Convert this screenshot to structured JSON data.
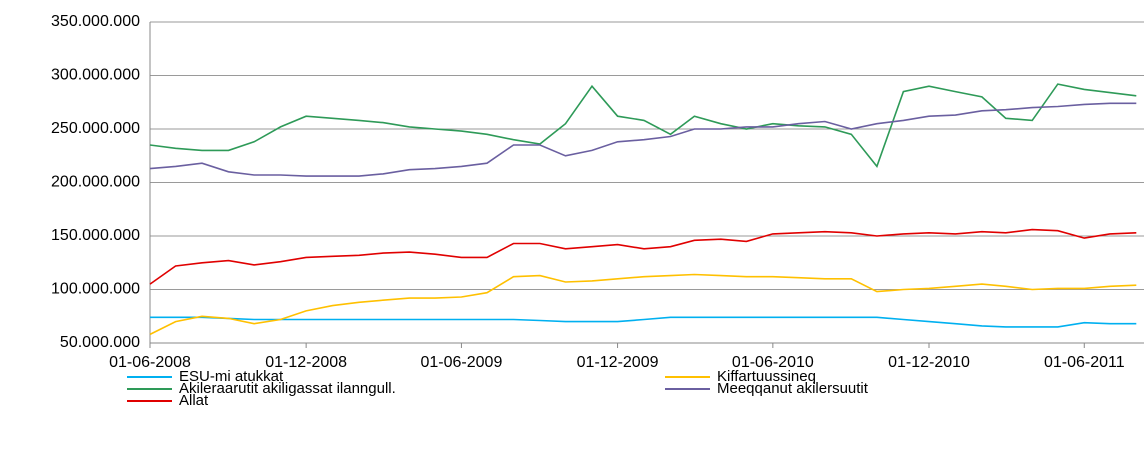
{
  "chart_data": {
    "type": "line",
    "x": [
      "01-06-2008",
      "01-07-2008",
      "01-08-2008",
      "01-09-2008",
      "01-10-2008",
      "01-11-2008",
      "01-12-2008",
      "01-01-2009",
      "01-02-2009",
      "01-03-2009",
      "01-04-2009",
      "01-05-2009",
      "01-06-2009",
      "01-07-2009",
      "01-08-2009",
      "01-09-2009",
      "01-10-2009",
      "01-11-2009",
      "01-12-2009",
      "01-01-2010",
      "01-02-2010",
      "01-03-2010",
      "01-04-2010",
      "01-05-2010",
      "01-06-2010",
      "01-07-2010",
      "01-08-2010",
      "01-09-2010",
      "01-10-2010",
      "01-11-2010",
      "01-12-2010",
      "01-01-2011",
      "01-02-2011",
      "01-03-2011",
      "01-04-2011",
      "01-05-2011",
      "01-06-2011",
      "01-07-2011",
      "01-08-2011"
    ],
    "series": [
      {
        "name": "ESU-mi atukkat",
        "color": "#00b0f0",
        "values": [
          74000000,
          74000000,
          74000000,
          73000000,
          72000000,
          72000000,
          72000000,
          72000000,
          72000000,
          72000000,
          72000000,
          72000000,
          72000000,
          72000000,
          72000000,
          71000000,
          70000000,
          70000000,
          70000000,
          72000000,
          74000000,
          74000000,
          74000000,
          74000000,
          74000000,
          74000000,
          74000000,
          74000000,
          74000000,
          72000000,
          70000000,
          68000000,
          66000000,
          65000000,
          65000000,
          65000000,
          69000000,
          68000000,
          68000000
        ]
      },
      {
        "name": "Kiffartuussineq",
        "color": "#ffc000",
        "values": [
          58000000,
          70000000,
          75000000,
          73000000,
          68000000,
          72000000,
          80000000,
          85000000,
          88000000,
          90000000,
          92000000,
          92000000,
          93000000,
          97000000,
          112000000,
          113000000,
          107000000,
          108000000,
          110000000,
          112000000,
          113000000,
          114000000,
          113000000,
          112000000,
          112000000,
          111000000,
          110000000,
          110000000,
          98000000,
          100000000,
          101000000,
          103000000,
          105000000,
          103000000,
          100000000,
          101000000,
          101000000,
          103000000,
          104000000
        ]
      },
      {
        "name": "Akileraarutit akiligassat ilanngull.",
        "color": "#2e9a58",
        "values": [
          235000000,
          232000000,
          230000000,
          230000000,
          238000000,
          252000000,
          262000000,
          260000000,
          258000000,
          256000000,
          252000000,
          250000000,
          248000000,
          245000000,
          240000000,
          236000000,
          255000000,
          290000000,
          262000000,
          258000000,
          245000000,
          262000000,
          255000000,
          250000000,
          255000000,
          253000000,
          252000000,
          245000000,
          215000000,
          285000000,
          290000000,
          285000000,
          280000000,
          260000000,
          258000000,
          292000000,
          287000000,
          284000000,
          281000000
        ]
      },
      {
        "name": "Meeqqanut akilersuutit",
        "color": "#6a5fa0",
        "values": [
          213000000,
          215000000,
          218000000,
          210000000,
          207000000,
          207000000,
          206000000,
          206000000,
          206000000,
          208000000,
          212000000,
          213000000,
          215000000,
          218000000,
          235000000,
          235000000,
          225000000,
          230000000,
          238000000,
          240000000,
          243000000,
          250000000,
          250000000,
          252000000,
          252000000,
          255000000,
          257000000,
          250000000,
          255000000,
          258000000,
          262000000,
          263000000,
          267000000,
          268000000,
          270000000,
          271000000,
          273000000,
          274000000,
          274000000
        ]
      },
      {
        "name": "Allat",
        "color": "#e00000",
        "values": [
          105000000,
          122000000,
          125000000,
          127000000,
          123000000,
          126000000,
          130000000,
          131000000,
          132000000,
          134000000,
          135000000,
          133000000,
          130000000,
          130000000,
          143000000,
          143000000,
          138000000,
          140000000,
          142000000,
          138000000,
          140000000,
          146000000,
          147000000,
          145000000,
          152000000,
          153000000,
          154000000,
          153000000,
          150000000,
          152000000,
          153000000,
          152000000,
          154000000,
          153000000,
          156000000,
          155000000,
          148000000,
          152000000,
          153000000
        ]
      }
    ],
    "xlim": [
      "01-06-2008",
      "10-08-2011"
    ],
    "xticks": [
      "01-06-2008",
      "01-12-2008",
      "01-06-2009",
      "01-12-2009",
      "01-06-2010",
      "01-12-2010",
      "01-06-2011"
    ],
    "ylim": [
      50000000,
      350000000
    ],
    "yticks": [
      {
        "value": 50000000,
        "label": "50.000.000"
      },
      {
        "value": 100000000,
        "label": "100.000.000"
      },
      {
        "value": 150000000,
        "label": "150.000.000"
      },
      {
        "value": 200000000,
        "label": "200.000.000"
      },
      {
        "value": 250000000,
        "label": "250.000.000"
      },
      {
        "value": 300000000,
        "label": "300.000.000"
      },
      {
        "value": 350000000,
        "label": "350.000.000"
      }
    ],
    "grid": true,
    "legend": "bottom"
  }
}
